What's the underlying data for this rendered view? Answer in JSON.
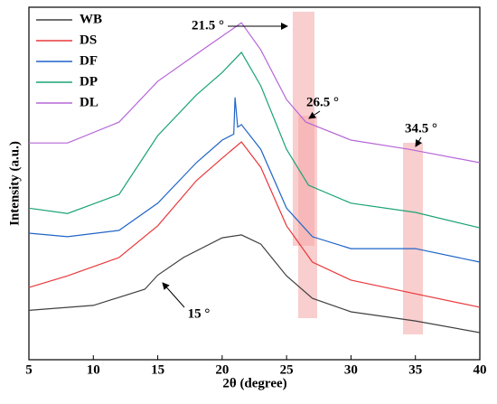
{
  "chart_data": {
    "type": "line",
    "x_label": "2θ (degree)",
    "y_label": "Intensity (a.u.)",
    "xlim": [
      5,
      40
    ],
    "xticks": [
      5,
      10,
      15,
      20,
      25,
      30,
      35,
      40
    ],
    "ylim": [
      0,
      100
    ],
    "legend": "top-left",
    "series": [
      {
        "name": "WB",
        "color": "#404040",
        "x": [
          5,
          10,
          14,
          15,
          17,
          20,
          21.5,
          23,
          25,
          27,
          30,
          35,
          40
        ],
        "values": [
          14,
          15.4,
          20,
          24,
          29,
          34.6,
          35.4,
          32.8,
          23.8,
          17.4,
          13.6,
          11,
          7.7
        ]
      },
      {
        "name": "DS",
        "color": "#e8383b",
        "x": [
          5,
          8,
          12,
          15,
          18,
          20,
          21.5,
          23,
          25,
          27,
          30,
          35,
          40
        ],
        "values": [
          20.5,
          23.8,
          29,
          38,
          50.8,
          57.2,
          61.8,
          54.6,
          38,
          27.7,
          22.6,
          18.7,
          14.9
        ]
      },
      {
        "name": "DF",
        "color": "#1f64c8",
        "x": [
          5,
          8,
          12,
          15,
          18,
          20,
          20.9,
          21,
          21.2,
          21.5,
          23,
          25,
          27,
          30,
          35,
          40
        ],
        "values": [
          35.9,
          34.9,
          36.7,
          44.4,
          55.9,
          62.3,
          64,
          74.4,
          66,
          66.7,
          59.7,
          43,
          34.9,
          31.5,
          31.5,
          27.7
        ]
      },
      {
        "name": "DP",
        "color": "#1aa374",
        "x": [
          5,
          8,
          12,
          15,
          18,
          20,
          21.5,
          23,
          25,
          26.7,
          30,
          35,
          40
        ],
        "values": [
          43,
          41.5,
          46.9,
          63.6,
          75.1,
          81.5,
          87.2,
          77.7,
          59.7,
          49.5,
          44.4,
          41.8,
          37.4
        ]
      },
      {
        "name": "DL",
        "color": "#b666d8",
        "x": [
          5,
          8,
          12,
          15,
          18,
          20,
          21.5,
          23,
          25,
          26.5,
          30,
          34.5,
          40
        ],
        "values": [
          61.5,
          61.5,
          67.4,
          79,
          86.7,
          91.8,
          95.6,
          87.9,
          73.8,
          67.4,
          62.3,
          59.7,
          55.9
        ]
      }
    ],
    "annotations": [
      "21.5 °",
      "26.5 °",
      "34.5 °",
      "15 °"
    ]
  }
}
